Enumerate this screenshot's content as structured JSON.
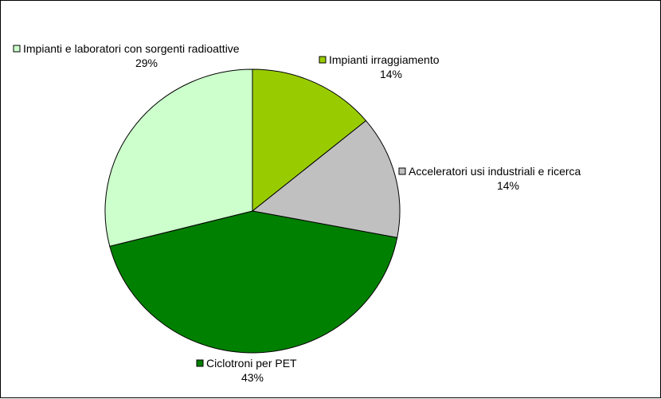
{
  "chart_data": {
    "type": "pie",
    "title": "",
    "slices": [
      {
        "label": "Impianti irraggiamento",
        "value": 14,
        "percent_label": "14%",
        "color": "#99CC00"
      },
      {
        "label": "Acceleratori usi industriali e ricerca",
        "value": 14,
        "percent_label": "14%",
        "color": "#C0C0C0"
      },
      {
        "label": "Ciclotroni per PET",
        "value": 43,
        "percent_label": "43%",
        "color": "#008000"
      },
      {
        "label": "Impianti e laboratori con sorgenti radioattive",
        "value": 29,
        "percent_label": "29%",
        "color": "#CCFFCC"
      }
    ],
    "start": "12 o'clock",
    "direction": "clockwise",
    "legend": "labels beside slices"
  }
}
